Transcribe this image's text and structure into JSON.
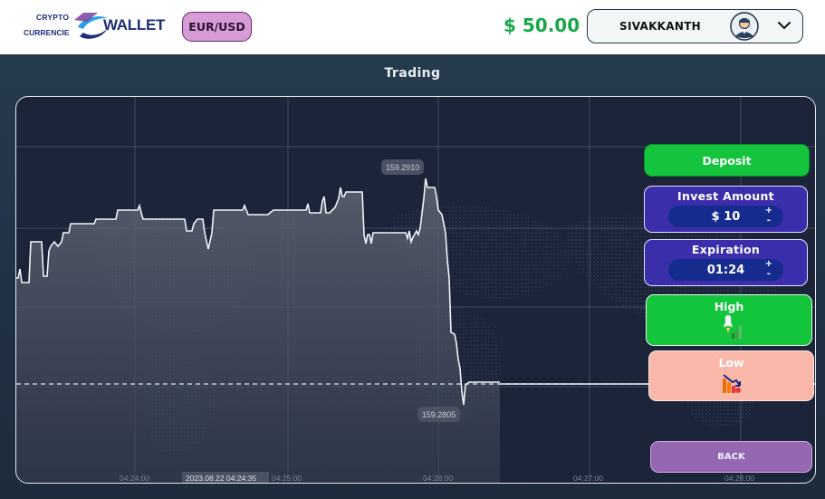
{
  "header": {
    "logo_line1": "CRYPTO",
    "logo_line2": "CURRENCIE",
    "logo_word": "WALLET",
    "pair_label": "EUR/USD",
    "balance": "$ 50.00",
    "username": "SIVAKKANTH"
  },
  "page": {
    "title": "Trading"
  },
  "chart": {
    "price_high_label": "159.2910",
    "price_low_label": "159.2805",
    "timestamp_label": "2023.08.22 04:24:35",
    "time_ticks": [
      "04:24:00",
      "04:25:00",
      "04:26:00",
      "04:27:00",
      "04:28:00"
    ]
  },
  "chart_data": {
    "type": "line",
    "x_label": "",
    "y_label": "",
    "annotated_values": [
      159.291,
      159.2805
    ],
    "x_ticks": [
      "04:24:00",
      "04:25:00",
      "04:26:00",
      "04:27:00",
      "04:28:00"
    ],
    "grid": true
  },
  "panel": {
    "deposit": "Deposit",
    "invest_label": "Invest Amount",
    "invest_value": "$  10",
    "expiration_label": "Expiration",
    "expiration_value": "01:24",
    "plus": "+",
    "minus": "-",
    "high": "High",
    "low": "Low",
    "back": "BACK"
  },
  "colors": {
    "accent_green": "#13c43c",
    "panel_blue": "#3b2eaa",
    "low_salmon": "#f9b8a9",
    "back_purple": "#9467b0",
    "balance_green": "#17a84a"
  }
}
